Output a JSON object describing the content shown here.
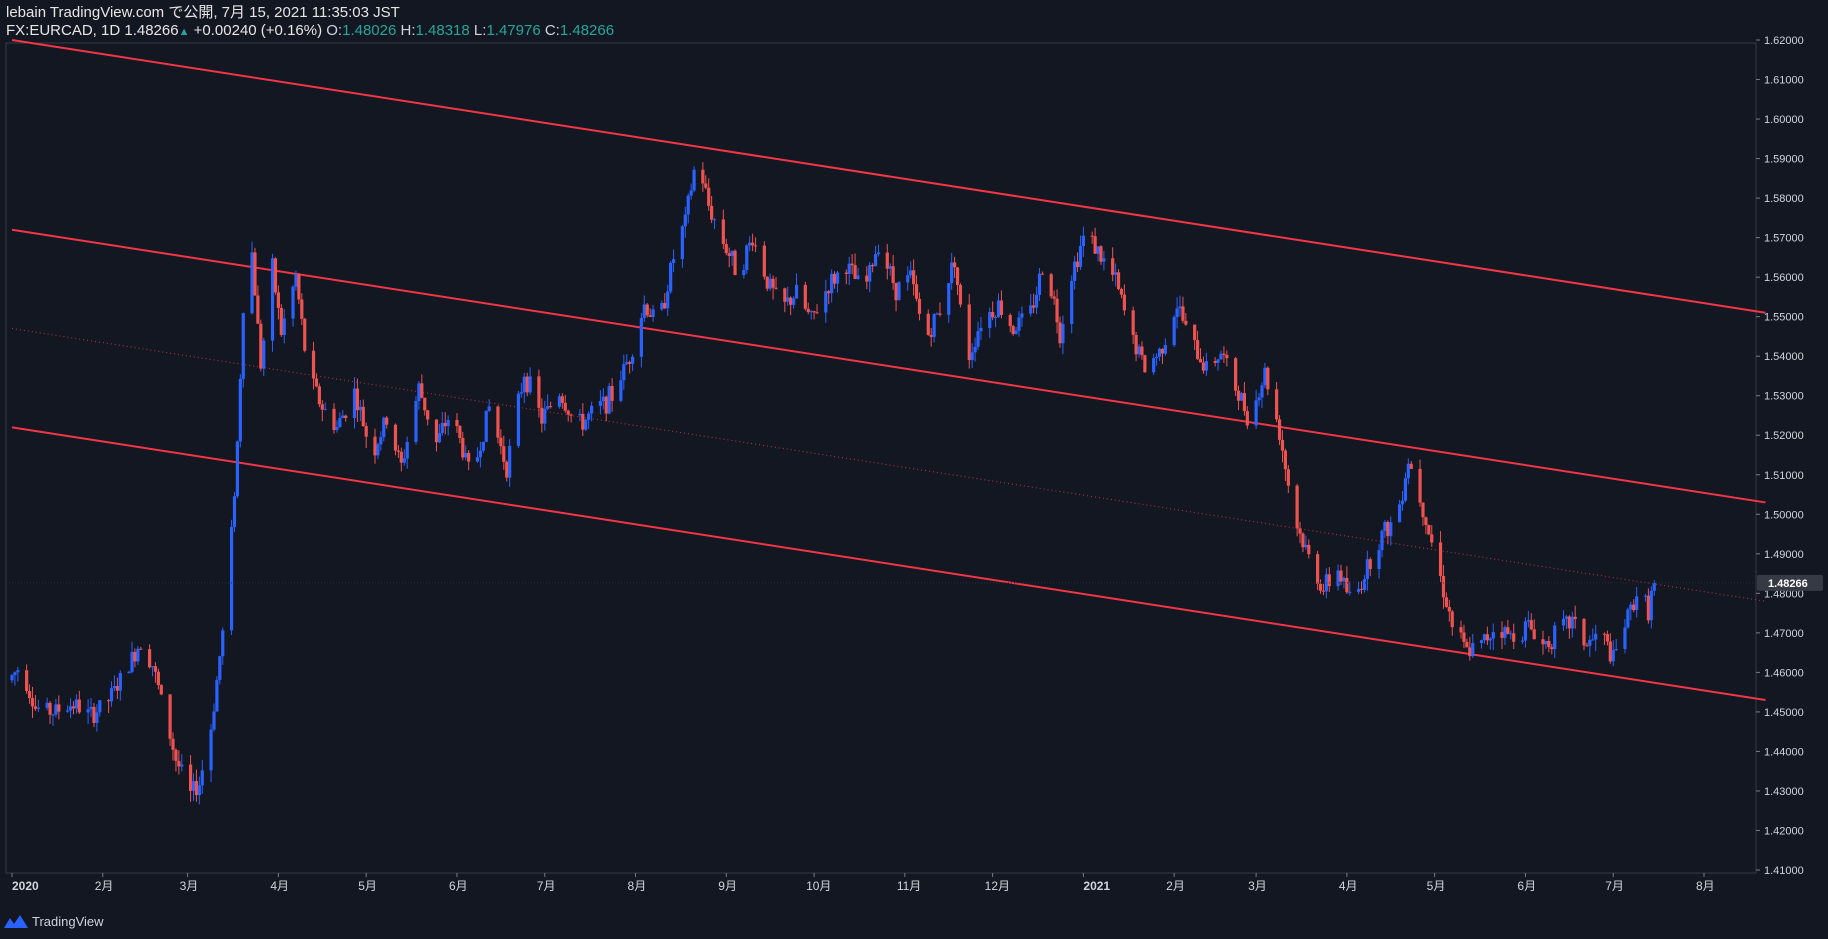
{
  "header": {
    "publish_line": "lebain TradingView.com で公開, 7月 15, 2021 11:35:03 JST",
    "symbol": "FX:EURCAD, 1D",
    "last": "1.48266",
    "change": "+0.00240 (+0.16%)",
    "o_label": "O:",
    "o_value": "1.48026",
    "h_label": "H:",
    "h_value": "1.48318",
    "l_label": "L:",
    "l_value": "1.47976",
    "c_label": "C:",
    "c_value": "1.48266"
  },
  "footer": {
    "brand": "TradingView"
  },
  "chart_data": {
    "type": "candlestick",
    "symbol": "FX:EURCAD",
    "interval": "1D",
    "ylim": [
      1.41,
      1.62
    ],
    "y_ticks": [
      "1.41000",
      "1.42000",
      "1.43000",
      "1.44000",
      "1.45000",
      "1.46000",
      "1.47000",
      "1.48000",
      "1.49000",
      "1.50000",
      "1.51000",
      "1.52000",
      "1.53000",
      "1.54000",
      "1.55000",
      "1.56000",
      "1.57000",
      "1.58000",
      "1.59000",
      "1.60000",
      "1.61000",
      "1.62000"
    ],
    "x_ticks": [
      {
        "label": "2020",
        "date": "2020-01-01"
      },
      {
        "label": "2月",
        "date": "2020-02-01"
      },
      {
        "label": "3月",
        "date": "2020-03-01"
      },
      {
        "label": "4月",
        "date": "2020-04-01"
      },
      {
        "label": "5月",
        "date": "2020-05-01"
      },
      {
        "label": "6月",
        "date": "2020-06-01"
      },
      {
        "label": "7月",
        "date": "2020-07-01"
      },
      {
        "label": "8月",
        "date": "2020-08-01"
      },
      {
        "label": "9月",
        "date": "2020-09-01"
      },
      {
        "label": "10月",
        "date": "2020-10-01"
      },
      {
        "label": "11月",
        "date": "2020-11-01"
      },
      {
        "label": "12月",
        "date": "2020-12-01"
      },
      {
        "label": "2021",
        "date": "2021-01-01"
      },
      {
        "label": "2月",
        "date": "2021-02-01"
      },
      {
        "label": "3月",
        "date": "2021-03-01"
      },
      {
        "label": "4月",
        "date": "2021-04-01"
      },
      {
        "label": "5月",
        "date": "2021-05-01"
      },
      {
        "label": "6月",
        "date": "2021-06-01"
      },
      {
        "label": "7月",
        "date": "2021-07-01"
      },
      {
        "label": "8月",
        "date": "2021-08-01"
      }
    ],
    "current_price": {
      "value": 1.48266,
      "label": "1.48266"
    },
    "price_path": [
      [
        "2019-12-31",
        1.458
      ],
      [
        "2020-01-04",
        1.462
      ],
      [
        "2020-01-09",
        1.451
      ],
      [
        "2020-01-15",
        1.45
      ],
      [
        "2020-01-22",
        1.452
      ],
      [
        "2020-01-28",
        1.449
      ],
      [
        "2020-02-03",
        1.453
      ],
      [
        "2020-02-08",
        1.459
      ],
      [
        "2020-02-14",
        1.468
      ],
      [
        "2020-02-18",
        1.462
      ],
      [
        "2020-02-22",
        1.45
      ],
      [
        "2020-02-26",
        1.438
      ],
      [
        "2020-03-02",
        1.429
      ],
      [
        "2020-03-05",
        1.432
      ],
      [
        "2020-03-09",
        1.446
      ],
      [
        "2020-03-13",
        1.47
      ],
      [
        "2020-03-16",
        1.495
      ],
      [
        "2020-03-18",
        1.518
      ],
      [
        "2020-03-20",
        1.553
      ],
      [
        "2020-03-23",
        1.566
      ],
      [
        "2020-03-26",
        1.538
      ],
      [
        "2020-03-30",
        1.562
      ],
      [
        "2020-04-02",
        1.546
      ],
      [
        "2020-04-07",
        1.56
      ],
      [
        "2020-04-11",
        1.536
      ],
      [
        "2020-04-16",
        1.527
      ],
      [
        "2020-04-21",
        1.522
      ],
      [
        "2020-04-27",
        1.531
      ],
      [
        "2020-05-03",
        1.515
      ],
      [
        "2020-05-08",
        1.524
      ],
      [
        "2020-05-13",
        1.512
      ],
      [
        "2020-05-19",
        1.532
      ],
      [
        "2020-05-25",
        1.518
      ],
      [
        "2020-05-30",
        1.526
      ],
      [
        "2020-06-06",
        1.509
      ],
      [
        "2020-06-12",
        1.527
      ],
      [
        "2020-06-18",
        1.512
      ],
      [
        "2020-06-24",
        1.536
      ],
      [
        "2020-06-30",
        1.524
      ],
      [
        "2020-07-06",
        1.531
      ],
      [
        "2020-07-12",
        1.522
      ],
      [
        "2020-07-18",
        1.526
      ],
      [
        "2020-07-24",
        1.53
      ],
      [
        "2020-07-30",
        1.54
      ],
      [
        "2020-08-04",
        1.553
      ],
      [
        "2020-08-09",
        1.548
      ],
      [
        "2020-08-14",
        1.565
      ],
      [
        "2020-08-18",
        1.574
      ],
      [
        "2020-08-22",
        1.591
      ],
      [
        "2020-08-26",
        1.578
      ],
      [
        "2020-08-31",
        1.569
      ],
      [
        "2020-09-05",
        1.561
      ],
      [
        "2020-09-10",
        1.57
      ],
      [
        "2020-09-15",
        1.559
      ],
      [
        "2020-09-20",
        1.552
      ],
      [
        "2020-09-25",
        1.556
      ],
      [
        "2020-09-30",
        1.549
      ],
      [
        "2020-10-06",
        1.558
      ],
      [
        "2020-10-12",
        1.563
      ],
      [
        "2020-10-18",
        1.556
      ],
      [
        "2020-10-23",
        1.569
      ],
      [
        "2020-10-29",
        1.557
      ],
      [
        "2020-11-03",
        1.56
      ],
      [
        "2020-11-08",
        1.544
      ],
      [
        "2020-11-13",
        1.552
      ],
      [
        "2020-11-18",
        1.565
      ],
      [
        "2020-11-22",
        1.538
      ],
      [
        "2020-11-27",
        1.549
      ],
      [
        "2020-12-03",
        1.553
      ],
      [
        "2020-12-08",
        1.547
      ],
      [
        "2020-12-14",
        1.551
      ],
      [
        "2020-12-19",
        1.565
      ],
      [
        "2020-12-24",
        1.546
      ],
      [
        "2020-12-28",
        1.561
      ],
      [
        "2021-01-02",
        1.572
      ],
      [
        "2021-01-07",
        1.565
      ],
      [
        "2021-01-12",
        1.559
      ],
      [
        "2021-01-17",
        1.546
      ],
      [
        "2021-01-22",
        1.537
      ],
      [
        "2021-01-27",
        1.541
      ],
      [
        "2021-02-02",
        1.553
      ],
      [
        "2021-02-07",
        1.543
      ],
      [
        "2021-02-12",
        1.537
      ],
      [
        "2021-02-17",
        1.541
      ],
      [
        "2021-02-22",
        1.532
      ],
      [
        "2021-02-27",
        1.524
      ],
      [
        "2021-03-04",
        1.536
      ],
      [
        "2021-03-09",
        1.521
      ],
      [
        "2021-03-14",
        1.499
      ],
      [
        "2021-03-19",
        1.489
      ],
      [
        "2021-03-24",
        1.481
      ],
      [
        "2021-03-29",
        1.486
      ],
      [
        "2021-04-03",
        1.477
      ],
      [
        "2021-04-08",
        1.487
      ],
      [
        "2021-04-13",
        1.495
      ],
      [
        "2021-04-18",
        1.499
      ],
      [
        "2021-04-22",
        1.514
      ],
      [
        "2021-04-27",
        1.502
      ],
      [
        "2021-05-02",
        1.487
      ],
      [
        "2021-05-07",
        1.472
      ],
      [
        "2021-05-12",
        1.465
      ],
      [
        "2021-05-17",
        1.467
      ],
      [
        "2021-05-22",
        1.472
      ],
      [
        "2021-05-27",
        1.469
      ],
      [
        "2021-06-02",
        1.472
      ],
      [
        "2021-06-07",
        1.467
      ],
      [
        "2021-06-12",
        1.47
      ],
      [
        "2021-06-17",
        1.473
      ],
      [
        "2021-06-22",
        1.467
      ],
      [
        "2021-06-27",
        1.47
      ],
      [
        "2021-07-01",
        1.463
      ],
      [
        "2021-07-05",
        1.472
      ],
      [
        "2021-07-09",
        1.48
      ],
      [
        "2021-07-13",
        1.476
      ],
      [
        "2021-07-15",
        1.4827
      ]
    ],
    "channel_lines": [
      {
        "name": "upper",
        "p1": [
          "2020-01-01",
          1.62
        ],
        "p2": [
          "2021-08-22",
          1.551
        ]
      },
      {
        "name": "middle",
        "p1": [
          "2020-01-01",
          1.572
        ],
        "p2": [
          "2021-08-22",
          1.503
        ]
      },
      {
        "name": "lower",
        "p1": [
          "2020-01-01",
          1.522
        ],
        "p2": [
          "2021-08-22",
          1.453
        ]
      }
    ],
    "centerline": {
      "name": "dotted-mid",
      "p1": [
        "2020-01-01",
        1.547
      ],
      "p2": [
        "2021-08-22",
        1.478
      ]
    },
    "colors": {
      "background": "#131722",
      "up_candle": "#2962ff",
      "down_candle": "#ef5350",
      "channel": "#f23645",
      "axis_text": "#d1d4dc",
      "header_value": "#26a69a"
    },
    "grid": false
  }
}
